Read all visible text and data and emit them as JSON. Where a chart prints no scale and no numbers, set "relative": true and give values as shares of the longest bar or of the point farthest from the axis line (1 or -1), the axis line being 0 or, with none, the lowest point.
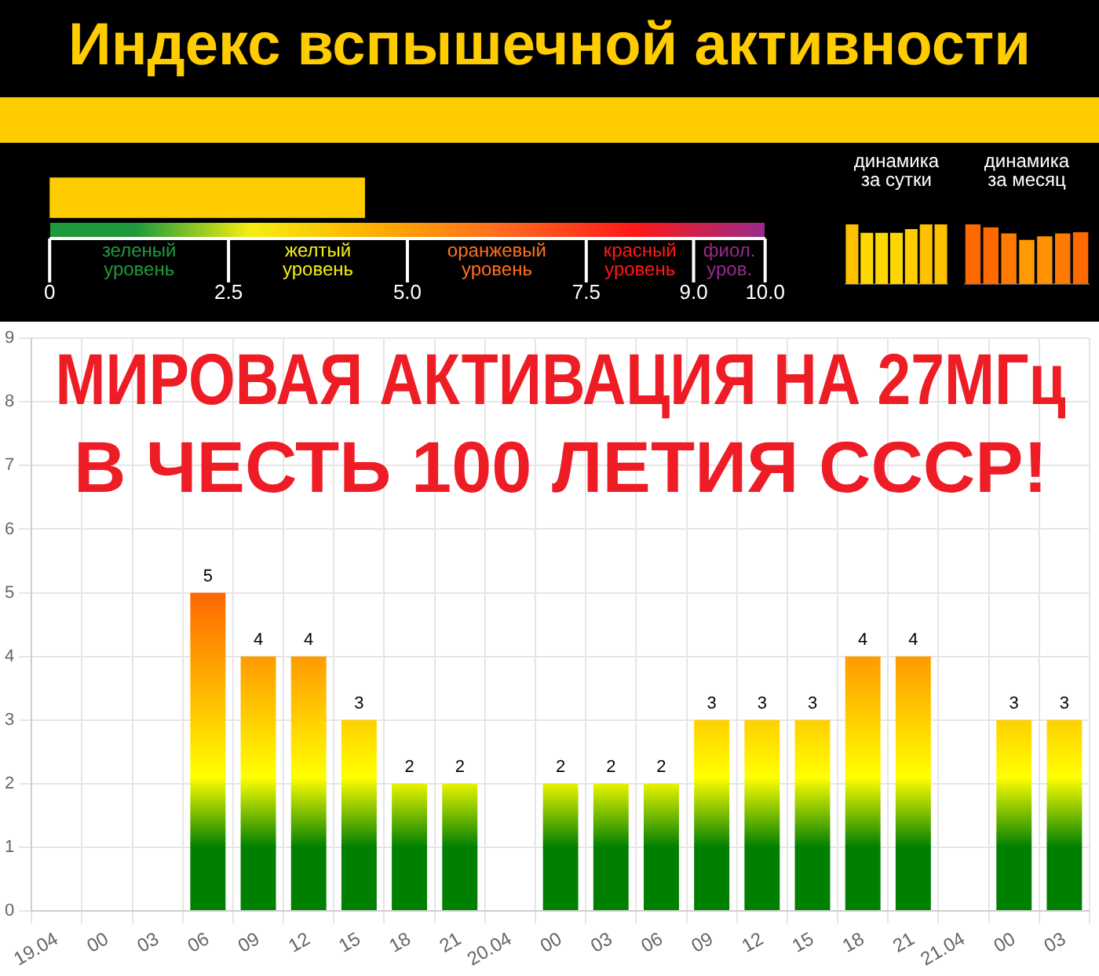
{
  "chart_data": [
    {
      "type": "bar",
      "orientation": "horizontal",
      "title": "Индекс вспышечной активности",
      "categories": [
        null
      ],
      "values": [
        4.4
      ],
      "color": "#ffcc00",
      "xlim": [
        0,
        10
      ],
      "xticks": [
        0,
        2.5,
        {
          "value": 5,
          "label": "5.0"
        },
        7.5,
        {
          "value": 9,
          "label": "9.0"
        },
        {
          "value": 10,
          "label": "10.0"
        }
      ],
      "tick_labels": "x",
      "annotations": [
        "зеленый уровень",
        "желтый уровень",
        "оранжевый уровень",
        "красный уровень",
        "фиол. уров."
      ]
    },
    {
      "type": "bar",
      "title": "динамика\nза сутки",
      "relative": true,
      "tick_labels": false,
      "categories": [
        null,
        null,
        null,
        null,
        null,
        null,
        null
      ],
      "values": [
        1,
        0.86,
        0.86,
        0.86,
        0.92,
        1,
        1
      ],
      "colors": [
        "#ffc000",
        "#ffd700",
        "#ffd700",
        "#ffd700",
        "#ffcc00",
        "#ffc000",
        "#ffc000"
      ]
    },
    {
      "type": "bar",
      "title": "динамика\nза месяц",
      "relative": true,
      "tick_labels": false,
      "categories": [
        null,
        null,
        null,
        null,
        null,
        null,
        null
      ],
      "values": [
        1,
        0.95,
        0.85,
        0.74,
        0.8,
        0.85,
        0.87
      ],
      "colors": [
        "#ff6a00",
        "#ff6a00",
        "#ff7a00",
        "#ff9a00",
        "#ff9000",
        "#ff7a00",
        "#ff6a00"
      ]
    },
    {
      "type": "bar",
      "categories": [
        "19.04",
        "00",
        "03",
        "06",
        "09",
        "12",
        "15",
        "18",
        "21",
        "20.04",
        "00",
        "03",
        "06",
        "09",
        "12",
        "15",
        "18",
        "21",
        "21.04",
        "00",
        "03"
      ],
      "values": [
        0,
        0,
        0,
        5,
        4,
        4,
        3,
        2,
        2,
        0,
        2,
        2,
        2,
        3,
        3,
        3,
        4,
        4,
        0,
        3,
        3
      ],
      "color": "#008000",
      "value_labels": [
        null,
        null,
        null,
        "5",
        "4",
        "4",
        "3",
        "2",
        "2",
        null,
        "2",
        "2",
        "2",
        "3",
        "3",
        "3",
        "4",
        "4",
        null,
        "3",
        "3"
      ],
      "ylim": [
        0,
        9
      ],
      "yticks": [
        0,
        1,
        2,
        3,
        4,
        5,
        6,
        7,
        8,
        9
      ],
      "grid": true,
      "annotations": [
        "МИРОВАЯ АКТИВАЦИЯ НА 27МГц",
        "В ЧЕСТЬ 100 ЛЕТИЯ СССР!"
      ]
    }
  ]
}
